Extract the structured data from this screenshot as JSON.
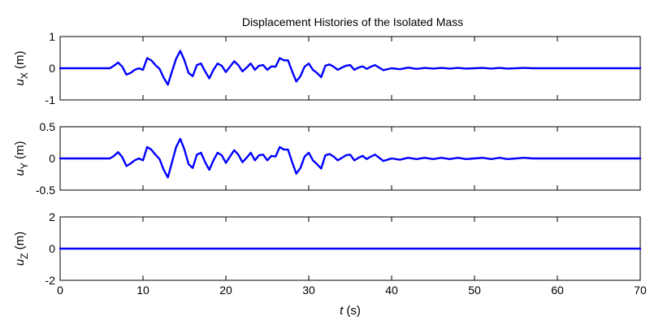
{
  "title": "Displacement Histories of the Isolated Mass",
  "xlabel": {
    "var": "t",
    "unit": " (s)"
  },
  "colors": {
    "series": "#0000ff",
    "axis": "#000000"
  },
  "chart_data": [
    {
      "type": "line",
      "ylabel": {
        "base": "u",
        "sub": "X",
        "unit": " (m)"
      },
      "xlim": [
        0,
        70
      ],
      "ylim": [
        -1,
        1
      ],
      "yticks": [
        -1,
        0,
        1
      ],
      "ytick_labels": [
        "-1",
        "0",
        "1"
      ],
      "series": [
        {
          "x": [
            0,
            6,
            6.5,
            7,
            7.5,
            8,
            8.5,
            9,
            9.5,
            10,
            10.5,
            11,
            11.5,
            12,
            12.5,
            13,
            13.5,
            14,
            14.5,
            15,
            15.5,
            16,
            16.5,
            17,
            17.5,
            18,
            18.5,
            19,
            19.5,
            20,
            20.5,
            21,
            21.5,
            22,
            22.5,
            23,
            23.5,
            24,
            24.5,
            25,
            25.5,
            26,
            26.5,
            27,
            27.5,
            28,
            28.5,
            29,
            29.5,
            30,
            30.5,
            31,
            31.5,
            32,
            32.5,
            33,
            33.5,
            34,
            34.5,
            35,
            35.5,
            36,
            36.5,
            37,
            37.5,
            38,
            38.5,
            39,
            39.5,
            40,
            41,
            42,
            43,
            44,
            45,
            46,
            47,
            48,
            49,
            50,
            51,
            52,
            53,
            54,
            55,
            56,
            57,
            58,
            59,
            60,
            62,
            64,
            66,
            68,
            70
          ],
          "y": [
            0,
            0,
            0.08,
            0.18,
            0.05,
            -0.2,
            -0.15,
            -0.05,
            0,
            -0.05,
            0.32,
            0.25,
            0.1,
            -0.02,
            -0.3,
            -0.52,
            -0.1,
            0.3,
            0.55,
            0.25,
            -0.15,
            -0.25,
            0.1,
            0.15,
            -0.1,
            -0.32,
            -0.05,
            0.15,
            0.08,
            -0.12,
            0.05,
            0.22,
            0.1,
            -0.1,
            0.02,
            0.15,
            -0.05,
            0.08,
            0.1,
            -0.05,
            0.06,
            0.05,
            0.32,
            0.25,
            0.25,
            -0.1,
            -0.42,
            -0.25,
            0.05,
            0.15,
            -0.05,
            -0.15,
            -0.28,
            0.08,
            0.12,
            0.05,
            -0.05,
            0.02,
            0.08,
            0.1,
            -0.05,
            0.02,
            0.06,
            -0.02,
            0.05,
            0.1,
            0.02,
            -0.06,
            -0.03,
            0,
            -0.03,
            0.02,
            -0.02,
            0.01,
            -0.01,
            0.01,
            -0.01,
            0.01,
            -0.01,
            0,
            0.01,
            -0.01,
            0.01,
            -0.01,
            0,
            0.01,
            0,
            0,
            0,
            0,
            0,
            0,
            0,
            0,
            0
          ]
        }
      ]
    },
    {
      "type": "line",
      "ylabel": {
        "base": "u",
        "sub": "Y",
        "unit": " (m)"
      },
      "xlim": [
        0,
        70
      ],
      "ylim": [
        -0.5,
        0.5
      ],
      "yticks": [
        -0.5,
        0,
        0.5
      ],
      "ytick_labels": [
        "-0.5",
        "0",
        "0.5"
      ],
      "series": [
        {
          "x": [
            0,
            6,
            6.5,
            7,
            7.5,
            8,
            8.5,
            9,
            9.5,
            10,
            10.5,
            11,
            11.5,
            12,
            12.5,
            13,
            13.5,
            14,
            14.5,
            15,
            15.5,
            16,
            16.5,
            17,
            17.5,
            18,
            18.5,
            19,
            19.5,
            20,
            20.5,
            21,
            21.5,
            22,
            22.5,
            23,
            23.5,
            24,
            24.5,
            25,
            25.5,
            26,
            26.5,
            27,
            27.5,
            28,
            28.5,
            29,
            29.5,
            30,
            30.5,
            31,
            31.5,
            32,
            32.5,
            33,
            33.5,
            34,
            34.5,
            35,
            35.5,
            36,
            36.5,
            37,
            37.5,
            38,
            38.5,
            39,
            39.5,
            40,
            41,
            42,
            43,
            44,
            45,
            46,
            47,
            48,
            49,
            50,
            51,
            52,
            53,
            54,
            55,
            56,
            57,
            58,
            59,
            60,
            62,
            64,
            66,
            68,
            70
          ],
          "y": [
            0,
            0,
            0.04,
            0.1,
            0.02,
            -0.12,
            -0.08,
            -0.03,
            0,
            -0.03,
            0.18,
            0.14,
            0.06,
            -0.01,
            -0.18,
            -0.3,
            -0.06,
            0.18,
            0.31,
            0.14,
            -0.09,
            -0.15,
            0.06,
            0.09,
            -0.06,
            -0.18,
            -0.03,
            0.09,
            0.05,
            -0.07,
            0.03,
            0.13,
            0.06,
            -0.06,
            0.01,
            0.09,
            -0.03,
            0.05,
            0.06,
            -0.03,
            0.04,
            0.03,
            0.18,
            0.14,
            0.14,
            -0.06,
            -0.24,
            -0.15,
            0.03,
            0.09,
            -0.03,
            -0.09,
            -0.16,
            0.05,
            0.07,
            0.03,
            -0.03,
            0.01,
            0.05,
            0.06,
            -0.03,
            0.01,
            0.04,
            -0.01,
            0.03,
            0.06,
            0.01,
            -0.04,
            -0.02,
            0,
            -0.02,
            0.01,
            -0.01,
            0.01,
            -0.01,
            0.01,
            -0.01,
            0.01,
            -0.01,
            0,
            0.01,
            -0.01,
            0.01,
            -0.01,
            0,
            0.01,
            0,
            0,
            0,
            0,
            0,
            0,
            0,
            0,
            0
          ]
        }
      ]
    },
    {
      "type": "line",
      "ylabel": {
        "base": "u",
        "sub": "Z",
        "unit": " (m)"
      },
      "xlim": [
        0,
        70
      ],
      "ylim": [
        -2,
        2
      ],
      "yticks": [
        -2,
        0,
        2
      ],
      "ytick_labels": [
        "-2",
        "0",
        "2"
      ],
      "xticks": [
        0,
        10,
        20,
        30,
        40,
        50,
        60,
        70
      ],
      "xtick_labels": [
        "0",
        "10",
        "20",
        "30",
        "40",
        "50",
        "60",
        "70"
      ],
      "series": [
        {
          "x": [
            0,
            70
          ],
          "y": [
            0,
            0
          ]
        }
      ]
    }
  ]
}
